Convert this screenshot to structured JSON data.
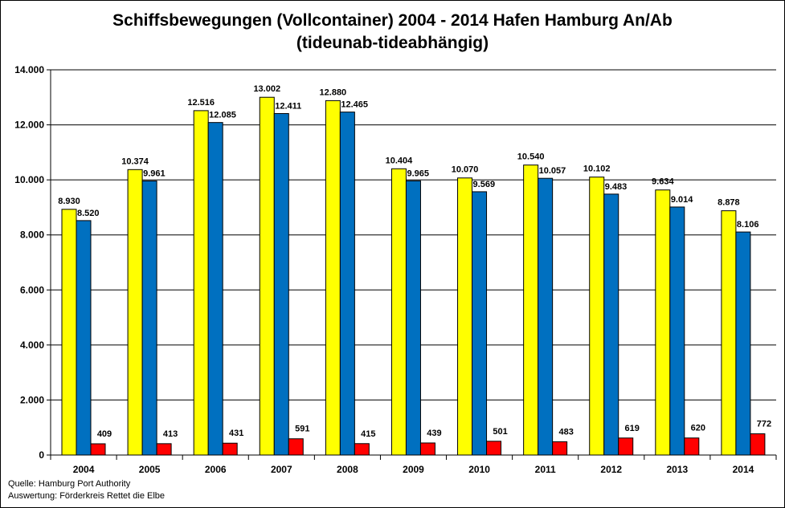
{
  "chart_data": {
    "type": "bar",
    "title_line1": "Schiffsbewegungen (Vollcontainer) 2004 - 2014  Hafen Hamburg An/Ab",
    "title_line2": "(tideunab-tideabhängig)",
    "categories": [
      "2004",
      "2005",
      "2006",
      "2007",
      "2008",
      "2009",
      "2010",
      "2011",
      "2012",
      "2013",
      "2014"
    ],
    "series": [
      {
        "color": "#FFFF00",
        "values": [
          8930,
          10374,
          12516,
          13002,
          12880,
          10404,
          10070,
          10540,
          10102,
          9634,
          8878
        ],
        "labels": [
          "8.930",
          "10.374",
          "12.516",
          "13.002",
          "12.880",
          "10.404",
          "10.070",
          "10.540",
          "10.102",
          "9.634",
          "8.878"
        ]
      },
      {
        "color": "#0070C0",
        "values": [
          8520,
          9961,
          12085,
          12411,
          12465,
          9965,
          9569,
          10057,
          9483,
          9014,
          8106
        ],
        "labels": [
          "8.520",
          "9.961",
          "12.085",
          "12.411",
          "12.465",
          "9.965",
          "9.569",
          "10.057",
          "9.483",
          "9.014",
          "8.106"
        ]
      },
      {
        "color": "#FF0000",
        "values": [
          409,
          413,
          431,
          591,
          415,
          439,
          501,
          483,
          619,
          620,
          772
        ],
        "labels": [
          "409",
          "413",
          "431",
          "591",
          "415",
          "439",
          "501",
          "483",
          "619",
          "620",
          "772"
        ]
      }
    ],
    "ylim": [
      0,
      14000
    ],
    "yticks": [
      0,
      2000,
      4000,
      6000,
      8000,
      10000,
      12000,
      14000
    ],
    "ytick_labels": [
      "0",
      "2.000",
      "4.000",
      "6.000",
      "8.000",
      "10.000",
      "12.000",
      "14.000"
    ],
    "grid": true,
    "legend": "none"
  },
  "source_lines": [
    "Quelle: Hamburg Port Authority",
    "Auswertung: Förderkreis Rettet die Elbe"
  ]
}
